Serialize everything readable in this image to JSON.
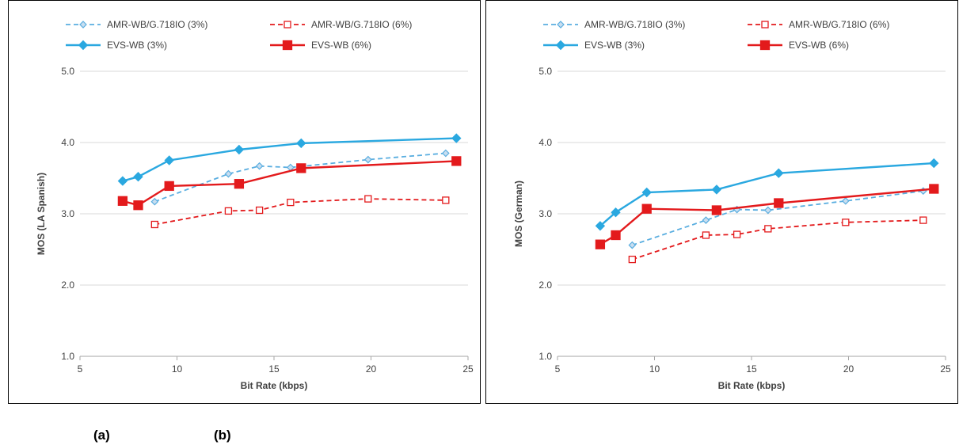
{
  "panel_labels": {
    "a": "(a)",
    "b": "(b)"
  },
  "colors": {
    "evs_blue": "#2aa8e0",
    "amr_blue": "#5aaee0",
    "red": "#e31a1c",
    "grid": "#d9d9d9"
  },
  "chart_data": [
    {
      "type": "line",
      "title": "",
      "xlabel": "Bit Rate (kbps)",
      "ylabel": "MOS (LA Spanish)",
      "xlim": [
        5,
        25
      ],
      "ylim": [
        1.0,
        5.0
      ],
      "xticks": [
        "5",
        "10",
        "15",
        "20",
        "25"
      ],
      "yticks": [
        "1.0",
        "2.0",
        "3.0",
        "4.0",
        "5.0"
      ],
      "grid": "horizontal",
      "legend_position": "top",
      "series": [
        {
          "name": "AMR-WB/G.718IO (3%)",
          "color": "#5aaee0",
          "dash": true,
          "marker": "diamond-open",
          "points": [
            [
              8.85,
              3.17
            ],
            [
              12.65,
              3.56
            ],
            [
              14.25,
              3.67
            ],
            [
              15.85,
              3.65
            ],
            [
              19.85,
              3.76
            ],
            [
              23.85,
              3.85
            ]
          ]
        },
        {
          "name": "AMR-WB/G.718IO (6%)",
          "color": "#e31a1c",
          "dash": true,
          "marker": "square-open",
          "points": [
            [
              8.85,
              2.85
            ],
            [
              12.65,
              3.04
            ],
            [
              14.25,
              3.05
            ],
            [
              15.85,
              3.16
            ],
            [
              19.85,
              3.21
            ],
            [
              23.85,
              3.19
            ]
          ]
        },
        {
          "name": "EVS-WB (3%)",
          "color": "#2aa8e0",
          "dash": false,
          "marker": "diamond",
          "points": [
            [
              7.2,
              3.46
            ],
            [
              8.0,
              3.52
            ],
            [
              9.6,
              3.75
            ],
            [
              13.2,
              3.9
            ],
            [
              16.4,
              3.99
            ],
            [
              24.4,
              4.06
            ]
          ]
        },
        {
          "name": "EVS-WB (6%)",
          "color": "#e31a1c",
          "dash": false,
          "marker": "square",
          "points": [
            [
              7.2,
              3.18
            ],
            [
              8.0,
              3.12
            ],
            [
              9.6,
              3.39
            ],
            [
              13.2,
              3.42
            ],
            [
              16.4,
              3.64
            ],
            [
              24.4,
              3.74
            ]
          ]
        }
      ]
    },
    {
      "type": "line",
      "title": "",
      "xlabel": "Bit Rate (kbps)",
      "ylabel": "MOS (German)",
      "xlim": [
        5,
        25
      ],
      "ylim": [
        1.0,
        5.0
      ],
      "xticks": [
        "5",
        "10",
        "15",
        "20",
        "25"
      ],
      "yticks": [
        "1.0",
        "2.0",
        "3.0",
        "4.0",
        "5.0"
      ],
      "grid": "horizontal",
      "legend_position": "top",
      "series": [
        {
          "name": "AMR-WB/G.718IO (3%)",
          "color": "#5aaee0",
          "dash": true,
          "marker": "diamond-open",
          "points": [
            [
              8.85,
              2.56
            ],
            [
              12.65,
              2.91
            ],
            [
              14.25,
              3.06
            ],
            [
              15.85,
              3.05
            ],
            [
              19.85,
              3.18
            ],
            [
              23.85,
              3.32
            ]
          ]
        },
        {
          "name": "AMR-WB/G.718IO (6%)",
          "color": "#e31a1c",
          "dash": true,
          "marker": "square-open",
          "points": [
            [
              8.85,
              2.36
            ],
            [
              12.65,
              2.7
            ],
            [
              14.25,
              2.71
            ],
            [
              15.85,
              2.79
            ],
            [
              19.85,
              2.88
            ],
            [
              23.85,
              2.91
            ]
          ]
        },
        {
          "name": "EVS-WB (3%)",
          "color": "#2aa8e0",
          "dash": false,
          "marker": "diamond",
          "points": [
            [
              7.2,
              2.83
            ],
            [
              8.0,
              3.02
            ],
            [
              9.6,
              3.3
            ],
            [
              13.2,
              3.34
            ],
            [
              16.4,
              3.57
            ],
            [
              24.4,
              3.71
            ]
          ]
        },
        {
          "name": "EVS-WB (6%)",
          "color": "#e31a1c",
          "dash": false,
          "marker": "square",
          "points": [
            [
              7.2,
              2.57
            ],
            [
              8.0,
              2.7
            ],
            [
              9.6,
              3.07
            ],
            [
              13.2,
              3.05
            ],
            [
              16.4,
              3.15
            ],
            [
              24.4,
              3.35
            ]
          ]
        }
      ]
    }
  ]
}
